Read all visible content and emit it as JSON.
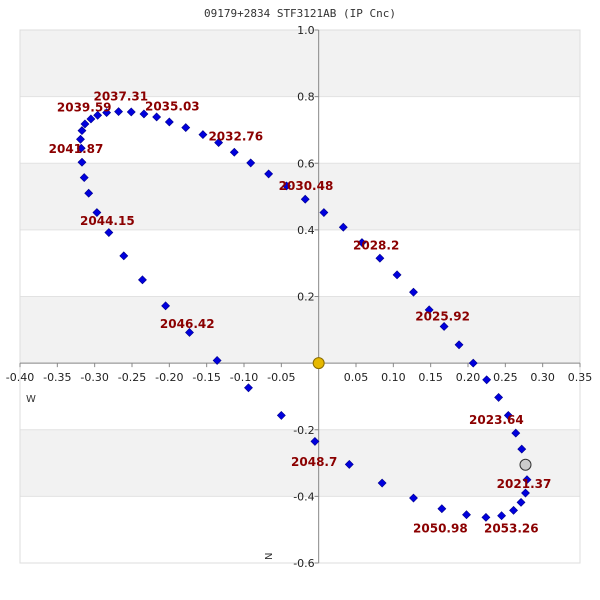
{
  "chart_data": {
    "type": "scatter",
    "title": "09179+2834 STF3121AB (IP Cnc)",
    "xlabel": "",
    "ylabel": "",
    "xlim": [
      -0.4,
      0.35
    ],
    "ylim": [
      -0.6,
      1.0
    ],
    "x_ticks": [
      "-0.40",
      "-0.35",
      "-0.30",
      "-0.25",
      "-0.20",
      "-0.15",
      "-0.10",
      "-0.05",
      "0.05",
      "0.10",
      "0.15",
      "0.20",
      "0.25",
      "0.30",
      "0.35"
    ],
    "y_ticks": [
      "1.0",
      "0.8",
      "0.6",
      "0.4",
      "0.2",
      "-0.2",
      "-0.4",
      "-0.6"
    ],
    "compass": {
      "west": "W",
      "north": "N"
    },
    "grid": "horizontal bands",
    "colors": {
      "orbit": "#0000dd",
      "primary": "#e6b800",
      "current": "#cccccc",
      "annotation": "#8b0000",
      "band": "#f2f2f2"
    },
    "primary": {
      "x": 0.0,
      "y": 0.0
    },
    "current_position": {
      "x": 0.277,
      "y": -0.305
    },
    "orbit_points": [
      [
        0.207,
        0.0
      ],
      [
        0.188,
        0.055
      ],
      [
        0.168,
        0.11
      ],
      [
        0.148,
        0.16
      ],
      [
        0.127,
        0.213
      ],
      [
        0.105,
        0.265
      ],
      [
        0.082,
        0.315
      ],
      [
        0.058,
        0.362
      ],
      [
        0.033,
        0.408
      ],
      [
        0.007,
        0.452
      ],
      [
        -0.018,
        0.492
      ],
      [
        -0.043,
        0.532
      ],
      [
        -0.067,
        0.568
      ],
      [
        -0.091,
        0.601
      ],
      [
        -0.113,
        0.633
      ],
      [
        -0.134,
        0.662
      ],
      [
        -0.155,
        0.686
      ],
      [
        -0.178,
        0.707
      ],
      [
        -0.2,
        0.724
      ],
      [
        -0.217,
        0.739
      ],
      [
        -0.234,
        0.748
      ],
      [
        -0.251,
        0.754
      ],
      [
        -0.268,
        0.755
      ],
      [
        -0.284,
        0.752
      ],
      [
        -0.296,
        0.744
      ],
      [
        -0.305,
        0.733
      ],
      [
        -0.313,
        0.718
      ],
      [
        -0.317,
        0.698
      ],
      [
        -0.319,
        0.672
      ],
      [
        -0.318,
        0.645
      ],
      [
        -0.317,
        0.603
      ],
      [
        -0.314,
        0.557
      ],
      [
        -0.308,
        0.51
      ],
      [
        -0.297,
        0.452
      ],
      [
        -0.281,
        0.392
      ],
      [
        -0.261,
        0.322
      ],
      [
        -0.236,
        0.25
      ],
      [
        -0.205,
        0.172
      ],
      [
        -0.173,
        0.092
      ],
      [
        -0.136,
        0.008
      ],
      [
        -0.094,
        -0.074
      ],
      [
        -0.05,
        -0.157
      ],
      [
        -0.005,
        -0.235
      ],
      [
        0.041,
        -0.304
      ],
      [
        0.085,
        -0.36
      ],
      [
        0.127,
        -0.405
      ],
      [
        0.165,
        -0.437
      ],
      [
        0.198,
        -0.455
      ],
      [
        0.224,
        -0.463
      ],
      [
        0.245,
        -0.458
      ],
      [
        0.261,
        -0.442
      ],
      [
        0.271,
        -0.418
      ],
      [
        0.277,
        -0.39
      ],
      [
        0.279,
        -0.35
      ],
      [
        0.277,
        -0.305
      ],
      [
        0.272,
        -0.258
      ],
      [
        0.264,
        -0.21
      ],
      [
        0.254,
        -0.157
      ],
      [
        0.241,
        -0.103
      ],
      [
        0.225,
        -0.05
      ]
    ],
    "annotations": [
      {
        "label": "2037.31",
        "x": -0.265,
        "y": 0.8
      },
      {
        "label": "2039.59",
        "x": -0.314,
        "y": 0.767
      },
      {
        "label": "2035.03",
        "x": -0.196,
        "y": 0.77
      },
      {
        "label": "2032.76",
        "x": -0.111,
        "y": 0.68
      },
      {
        "label": "2041.87",
        "x": -0.325,
        "y": 0.643
      },
      {
        "label": "2030.48",
        "x": -0.017,
        "y": 0.532
      },
      {
        "label": "2044.15",
        "x": -0.283,
        "y": 0.427
      },
      {
        "label": "2028.2",
        "x": 0.077,
        "y": 0.353
      },
      {
        "label": "2025.92",
        "x": 0.166,
        "y": 0.14
      },
      {
        "label": "2046.42",
        "x": -0.176,
        "y": 0.118
      },
      {
        "label": "2023.64",
        "x": 0.238,
        "y": -0.17
      },
      {
        "label": "2048.7",
        "x": -0.006,
        "y": -0.297
      },
      {
        "label": "2021.37",
        "x": 0.275,
        "y": -0.363
      },
      {
        "label": "2050.98",
        "x": 0.163,
        "y": -0.497
      },
      {
        "label": "2053.26",
        "x": 0.258,
        "y": -0.497
      }
    ]
  }
}
